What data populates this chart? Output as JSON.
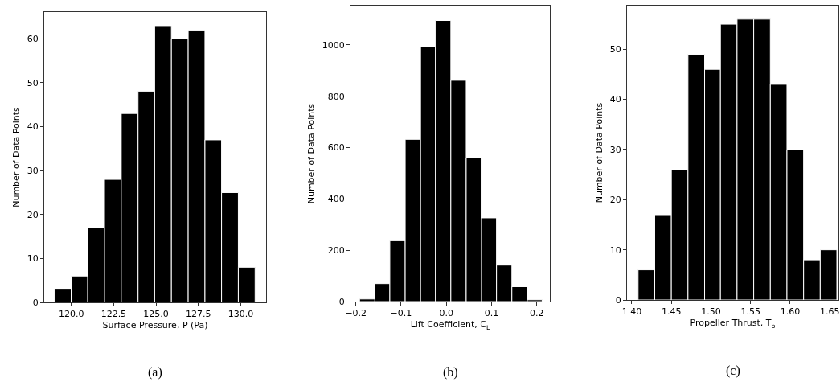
{
  "chart_data": [
    {
      "type": "histogram",
      "xlabel": "Surface Pressure, P (Pa)",
      "ylabel": "Number of Data Points",
      "annotations": [
        "(a)"
      ],
      "color": "#000000",
      "bins": [
        119.0,
        119.99,
        120.97,
        121.96,
        122.95,
        123.94,
        124.92,
        125.91,
        126.9,
        127.89,
        128.87,
        129.86,
        130.85
      ],
      "values": [
        3,
        6,
        17,
        28,
        43,
        48,
        63,
        60,
        62,
        37,
        25,
        8
      ],
      "xlim": [
        118.4,
        131.5
      ],
      "xticks": [
        {
          "value": 120,
          "label": "120.0"
        },
        {
          "value": 122.5,
          "label": "122.5"
        },
        {
          "value": 125,
          "label": "125.0"
        },
        {
          "value": 127.5,
          "label": "127.5"
        },
        {
          "value": 130,
          "label": "130.0"
        }
      ],
      "ylim": [
        0,
        66.1
      ],
      "yticks": [
        0,
        10,
        20,
        30,
        40,
        50,
        60
      ],
      "grid": false
    },
    {
      "type": "histogram",
      "xlabel": "Lift Coefficient, C$_{L}$",
      "ylabel": "Number of Data Points",
      "annotations": [
        "(b)"
      ],
      "color": "#000000",
      "bins": [
        -0.192,
        -0.158,
        -0.125,
        -0.091,
        -0.057,
        -0.024,
        0.01,
        0.044,
        0.078,
        0.111,
        0.145,
        0.179,
        0.212
      ],
      "values": [
        10,
        70,
        237,
        632,
        992,
        1095,
        862,
        560,
        326,
        142,
        58,
        7
      ],
      "xlim": [
        -0.212,
        0.229
      ],
      "xticks": [
        {
          "value": -0.2,
          "label": "−0.2"
        },
        {
          "value": -0.1,
          "label": "−0.1"
        },
        {
          "value": 0,
          "label": "0.0"
        },
        0.1,
        0.2
      ],
      "ylim": [
        0,
        1153
      ],
      "yticks": [
        0,
        200,
        400,
        600,
        800,
        1000
      ],
      "grid": false
    },
    {
      "type": "histogram",
      "xlabel": "Propeller Thrust, T$_{p}$",
      "ylabel": "Number of Data Points",
      "annotations": [
        "(c)"
      ],
      "color": "#000000",
      "bins": [
        1.408,
        1.429,
        1.45,
        1.471,
        1.492,
        1.512,
        1.533,
        1.554,
        1.575,
        1.596,
        1.617,
        1.638,
        1.659
      ],
      "values": [
        6,
        17,
        26,
        49,
        46,
        55,
        56,
        56,
        43,
        30,
        8,
        10
      ],
      "xlim": [
        1.394,
        1.661
      ],
      "xticks": [
        {
          "value": 1.4,
          "label": "1.40"
        },
        {
          "value": 1.45,
          "label": "1.45"
        },
        {
          "value": 1.5,
          "label": "1.50"
        },
        {
          "value": 1.55,
          "label": "1.55"
        },
        {
          "value": 1.6,
          "label": "1.60"
        },
        {
          "value": 1.65,
          "label": "1.65"
        }
      ],
      "ylim": [
        0,
        58.7
      ],
      "yticks": [
        0,
        10,
        20,
        30,
        40,
        50
      ],
      "grid": false
    }
  ]
}
